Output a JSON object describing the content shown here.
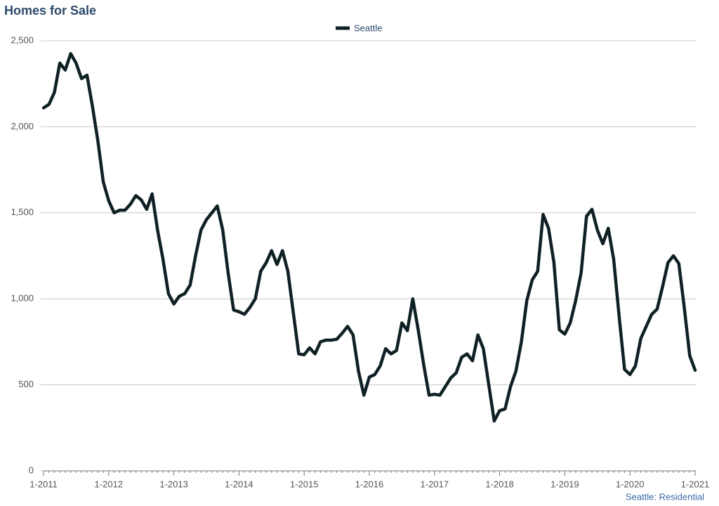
{
  "chart_data": {
    "type": "line",
    "title": "Homes for Sale",
    "note": "Seattle: Residential",
    "categories": [
      "1-2011",
      null,
      null,
      null,
      null,
      null,
      null,
      null,
      null,
      null,
      null,
      null,
      "1-2012",
      null,
      null,
      null,
      null,
      null,
      null,
      null,
      null,
      null,
      null,
      null,
      "1-2013",
      null,
      null,
      null,
      null,
      null,
      null,
      null,
      null,
      null,
      null,
      null,
      "1-2014",
      null,
      null,
      null,
      null,
      null,
      null,
      null,
      null,
      null,
      null,
      null,
      "1-2015",
      null,
      null,
      null,
      null,
      null,
      null,
      null,
      null,
      null,
      null,
      null,
      "1-2016",
      null,
      null,
      null,
      null,
      null,
      null,
      null,
      null,
      null,
      null,
      null,
      "1-2017",
      null,
      null,
      null,
      null,
      null,
      null,
      null,
      null,
      null,
      null,
      null,
      "1-2018",
      null,
      null,
      null,
      null,
      null,
      null,
      null,
      null,
      null,
      null,
      null,
      "1-2019",
      null,
      null,
      null,
      null,
      null,
      null,
      null,
      null,
      null,
      null,
      null,
      "1-2020",
      null,
      null,
      null,
      null,
      null,
      null,
      null,
      null,
      null,
      null,
      null,
      "1-2021"
    ],
    "series": [
      {
        "name": "Seattle",
        "color": "#0f2124",
        "values": [
          2110,
          2130,
          2200,
          2370,
          2330,
          2425,
          2370,
          2280,
          2300,
          2120,
          1920,
          1680,
          1570,
          1500,
          1515,
          1515,
          1550,
          1600,
          1575,
          1520,
          1610,
          1400,
          1230,
          1030,
          970,
          1015,
          1030,
          1080,
          1250,
          1400,
          1460,
          1500,
          1540,
          1400,
          1150,
          935,
          925,
          910,
          950,
          1000,
          1160,
          1210,
          1280,
          1200,
          1280,
          1160,
          920,
          680,
          675,
          715,
          680,
          750,
          760,
          760,
          765,
          800,
          840,
          790,
          580,
          440,
          545,
          560,
          610,
          710,
          680,
          700,
          860,
          815,
          1000,
          820,
          620,
          440,
          445,
          440,
          490,
          540,
          570,
          660,
          680,
          640,
          790,
          710,
          500,
          290,
          350,
          360,
          490,
          580,
          750,
          990,
          1110,
          1160,
          1490,
          1410,
          1210,
          820,
          795,
          860,
          990,
          1150,
          1480,
          1520,
          1400,
          1320,
          1410,
          1230,
          900,
          590,
          560,
          610,
          770,
          840,
          910,
          940,
          1070,
          1210,
          1250,
          1205,
          950,
          670,
          585
        ]
      }
    ],
    "ylim": [
      0,
      2500
    ],
    "yticks": [
      0,
      500,
      {
        "value": 1000,
        "label": "1,000"
      },
      {
        "value": 1500,
        "label": "1,500"
      },
      {
        "value": 2000,
        "label": "2,000"
      },
      {
        "value": 2500,
        "label": "2,500"
      }
    ],
    "grid": true,
    "legend": "top"
  }
}
